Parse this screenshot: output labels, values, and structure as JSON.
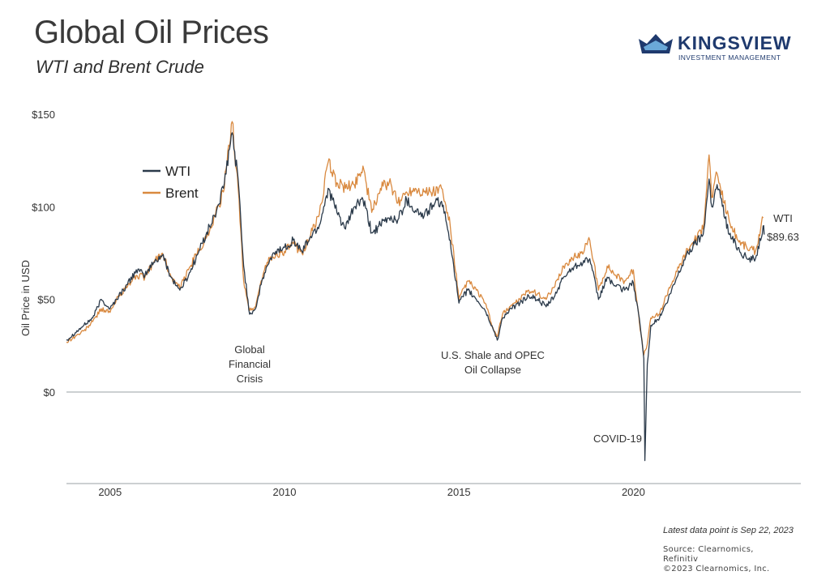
{
  "header": {
    "title": "Global Oil Prices",
    "subtitle": "WTI and Brent Crude"
  },
  "logo": {
    "name": "KINGSVIEW",
    "tagline": "INVESTMENT MANAGEMENT",
    "color": "#1f3a6e"
  },
  "footer": {
    "latest": "Latest data point is Sep 22, 2023",
    "source_line1": "Source: Clearnomics,",
    "source_line2": "Refinitiv",
    "copyright": "©2023 Clearnomics, Inc."
  },
  "chart_data": {
    "type": "line",
    "title": "Global Oil Prices",
    "subtitle": "WTI and Brent Crude",
    "ylabel": "Oil Price in USD",
    "xlabel": "",
    "xlim": [
      2003.75,
      2024.8
    ],
    "ylim": [
      -50,
      150
    ],
    "y_ticks": [
      {
        "value": 150,
        "label": "$150"
      },
      {
        "value": 100,
        "label": "$100"
      },
      {
        "value": 50,
        "label": "$50"
      },
      {
        "value": 0,
        "label": "$0"
      }
    ],
    "x_ticks": [
      {
        "value": 2005,
        "label": "2005"
      },
      {
        "value": 2010,
        "label": "2010"
      },
      {
        "value": 2015,
        "label": "2015"
      },
      {
        "value": 2020,
        "label": "2020"
      }
    ],
    "grid": false,
    "legend_position": "top-left",
    "series": [
      {
        "name": "WTI",
        "color": "#2b3a4a",
        "points": [
          [
            2003.75,
            28
          ],
          [
            2004.0,
            32
          ],
          [
            2004.25,
            36
          ],
          [
            2004.5,
            40
          ],
          [
            2004.75,
            50
          ],
          [
            2005.0,
            45
          ],
          [
            2005.25,
            52
          ],
          [
            2005.5,
            58
          ],
          [
            2005.75,
            66
          ],
          [
            2006.0,
            63
          ],
          [
            2006.25,
            70
          ],
          [
            2006.5,
            74
          ],
          [
            2006.75,
            62
          ],
          [
            2007.0,
            55
          ],
          [
            2007.25,
            63
          ],
          [
            2007.5,
            74
          ],
          [
            2007.75,
            85
          ],
          [
            2008.0,
            95
          ],
          [
            2008.25,
            110
          ],
          [
            2008.5,
            140
          ],
          [
            2008.67,
            115
          ],
          [
            2008.83,
            68
          ],
          [
            2009.0,
            42
          ],
          [
            2009.17,
            45
          ],
          [
            2009.33,
            58
          ],
          [
            2009.5,
            68
          ],
          [
            2009.75,
            76
          ],
          [
            2010.0,
            78
          ],
          [
            2010.25,
            82
          ],
          [
            2010.5,
            76
          ],
          [
            2010.75,
            84
          ],
          [
            2011.0,
            90
          ],
          [
            2011.25,
            110
          ],
          [
            2011.5,
            97
          ],
          [
            2011.75,
            88
          ],
          [
            2012.0,
            100
          ],
          [
            2012.25,
            104
          ],
          [
            2012.5,
            86
          ],
          [
            2012.75,
            90
          ],
          [
            2013.0,
            94
          ],
          [
            2013.25,
            93
          ],
          [
            2013.5,
            104
          ],
          [
            2013.75,
            98
          ],
          [
            2014.0,
            95
          ],
          [
            2014.25,
            101
          ],
          [
            2014.5,
            103
          ],
          [
            2014.75,
            82
          ],
          [
            2015.0,
            48
          ],
          [
            2015.25,
            55
          ],
          [
            2015.5,
            50
          ],
          [
            2015.75,
            44
          ],
          [
            2016.0,
            33
          ],
          [
            2016.1,
            28
          ],
          [
            2016.25,
            40
          ],
          [
            2016.5,
            45
          ],
          [
            2016.75,
            48
          ],
          [
            2017.0,
            52
          ],
          [
            2017.25,
            50
          ],
          [
            2017.5,
            46
          ],
          [
            2017.75,
            52
          ],
          [
            2018.0,
            62
          ],
          [
            2018.25,
            67
          ],
          [
            2018.5,
            70
          ],
          [
            2018.75,
            72
          ],
          [
            2019.0,
            50
          ],
          [
            2019.25,
            62
          ],
          [
            2019.5,
            57
          ],
          [
            2019.75,
            55
          ],
          [
            2020.0,
            59
          ],
          [
            2020.17,
            40
          ],
          [
            2020.3,
            18
          ],
          [
            2020.33,
            -37
          ],
          [
            2020.4,
            15
          ],
          [
            2020.5,
            36
          ],
          [
            2020.75,
            40
          ],
          [
            2021.0,
            50
          ],
          [
            2021.25,
            62
          ],
          [
            2021.5,
            73
          ],
          [
            2021.75,
            80
          ],
          [
            2022.0,
            85
          ],
          [
            2022.17,
            115
          ],
          [
            2022.25,
            100
          ],
          [
            2022.4,
            112
          ],
          [
            2022.5,
            105
          ],
          [
            2022.75,
            85
          ],
          [
            2023.0,
            78
          ],
          [
            2023.25,
            72
          ],
          [
            2023.5,
            72
          ],
          [
            2023.75,
            85
          ],
          [
            2023.72,
            89.63
          ]
        ]
      },
      {
        "name": "Brent",
        "color": "#d9893f",
        "points": [
          [
            2003.75,
            27
          ],
          [
            2004.0,
            30
          ],
          [
            2004.25,
            33
          ],
          [
            2004.5,
            38
          ],
          [
            2004.75,
            45
          ],
          [
            2005.0,
            43
          ],
          [
            2005.25,
            52
          ],
          [
            2005.5,
            57
          ],
          [
            2005.75,
            63
          ],
          [
            2006.0,
            62
          ],
          [
            2006.25,
            70
          ],
          [
            2006.5,
            75
          ],
          [
            2006.75,
            62
          ],
          [
            2007.0,
            56
          ],
          [
            2007.25,
            66
          ],
          [
            2007.5,
            75
          ],
          [
            2007.75,
            83
          ],
          [
            2008.0,
            95
          ],
          [
            2008.25,
            108
          ],
          [
            2008.5,
            146
          ],
          [
            2008.67,
            110
          ],
          [
            2008.83,
            60
          ],
          [
            2009.0,
            44
          ],
          [
            2009.17,
            46
          ],
          [
            2009.33,
            60
          ],
          [
            2009.5,
            70
          ],
          [
            2009.75,
            74
          ],
          [
            2010.0,
            76
          ],
          [
            2010.25,
            80
          ],
          [
            2010.5,
            75
          ],
          [
            2010.75,
            85
          ],
          [
            2011.0,
            96
          ],
          [
            2011.25,
            124
          ],
          [
            2011.5,
            113
          ],
          [
            2011.75,
            110
          ],
          [
            2012.0,
            112
          ],
          [
            2012.25,
            122
          ],
          [
            2012.5,
            97
          ],
          [
            2012.75,
            110
          ],
          [
            2013.0,
            113
          ],
          [
            2013.25,
            102
          ],
          [
            2013.5,
            108
          ],
          [
            2013.75,
            110
          ],
          [
            2014.0,
            108
          ],
          [
            2014.25,
            108
          ],
          [
            2014.5,
            110
          ],
          [
            2014.75,
            90
          ],
          [
            2015.0,
            50
          ],
          [
            2015.25,
            60
          ],
          [
            2015.5,
            55
          ],
          [
            2015.75,
            48
          ],
          [
            2016.0,
            33
          ],
          [
            2016.1,
            30
          ],
          [
            2016.25,
            42
          ],
          [
            2016.5,
            47
          ],
          [
            2016.75,
            50
          ],
          [
            2017.0,
            55
          ],
          [
            2017.25,
            53
          ],
          [
            2017.5,
            50
          ],
          [
            2017.75,
            57
          ],
          [
            2018.0,
            68
          ],
          [
            2018.25,
            72
          ],
          [
            2018.5,
            75
          ],
          [
            2018.75,
            82
          ],
          [
            2019.0,
            55
          ],
          [
            2019.25,
            68
          ],
          [
            2019.5,
            63
          ],
          [
            2019.75,
            60
          ],
          [
            2020.0,
            66
          ],
          [
            2020.17,
            38
          ],
          [
            2020.3,
            20
          ],
          [
            2020.4,
            26
          ],
          [
            2020.5,
            40
          ],
          [
            2020.75,
            42
          ],
          [
            2021.0,
            55
          ],
          [
            2021.25,
            65
          ],
          [
            2021.5,
            75
          ],
          [
            2021.75,
            82
          ],
          [
            2022.0,
            88
          ],
          [
            2022.17,
            128
          ],
          [
            2022.25,
            105
          ],
          [
            2022.4,
            118
          ],
          [
            2022.5,
            110
          ],
          [
            2022.75,
            92
          ],
          [
            2023.0,
            82
          ],
          [
            2023.25,
            78
          ],
          [
            2023.5,
            76
          ],
          [
            2023.72,
            94
          ]
        ]
      }
    ],
    "legend": [
      "WTI",
      "Brent"
    ],
    "end_label": {
      "series": "WTI",
      "line1": "WTI",
      "line2": "$89.63"
    },
    "annotations": [
      {
        "lines": [
          "Global",
          "Financial",
          "Crisis"
        ],
        "x": 2008.9
      },
      {
        "lines": [
          "U.S. Shale and OPEC",
          "Oil Collapse"
        ],
        "x": 2016.0
      },
      {
        "lines": [
          "COVID-19"
        ],
        "x": 2020.0
      }
    ]
  }
}
